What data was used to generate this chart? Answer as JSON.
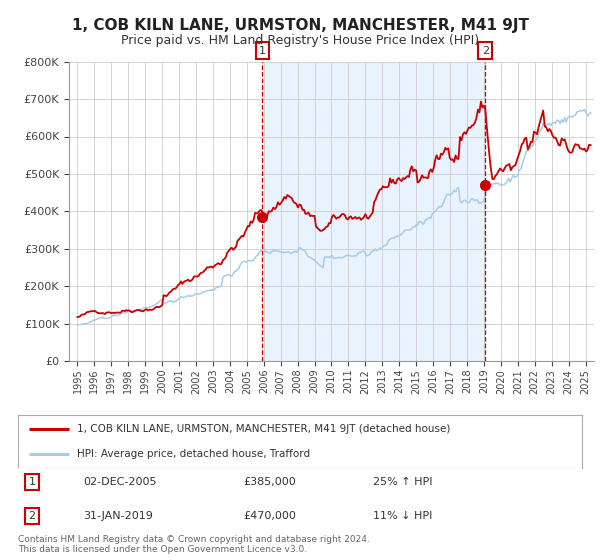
{
  "title": "1, COB KILN LANE, URMSTON, MANCHESTER, M41 9JT",
  "subtitle": "Price paid vs. HM Land Registry's House Price Index (HPI)",
  "line1_label": "1, COB KILN LANE, URMSTON, MANCHESTER, M41 9JT (detached house)",
  "line2_label": "HPI: Average price, detached house, Trafford",
  "line1_color": "#cc0000",
  "line2_color": "#a8cce8",
  "point1_date": 2005.92,
  "point1_value": 385000,
  "point2_date": 2019.08,
  "point2_value": 470000,
  "point1_text": "02-DEC-2005",
  "point1_price": "£385,000",
  "point1_hpi": "25% ↑ HPI",
  "point2_text": "31-JAN-2019",
  "point2_price": "£470,000",
  "point2_hpi": "11% ↓ HPI",
  "vline_color": "#cc0000",
  "shade_color": "#ddeeff",
  "ylim": [
    0,
    800000
  ],
  "yticks": [
    0,
    100000,
    200000,
    300000,
    400000,
    500000,
    600000,
    700000,
    800000
  ],
  "ytick_labels": [
    "£0",
    "£100K",
    "£200K",
    "£300K",
    "£400K",
    "£500K",
    "£600K",
    "£700K",
    "£800K"
  ],
  "xlim_start": 1994.5,
  "xlim_end": 2025.5,
  "xticks": [
    1995,
    1996,
    1997,
    1998,
    1999,
    2000,
    2001,
    2002,
    2003,
    2004,
    2005,
    2006,
    2007,
    2008,
    2009,
    2010,
    2011,
    2012,
    2013,
    2014,
    2015,
    2016,
    2017,
    2018,
    2019,
    2020,
    2021,
    2022,
    2023,
    2024,
    2025
  ],
  "background_color": "#ffffff",
  "grid_color": "#cccccc",
  "footer_text": "Contains HM Land Registry data © Crown copyright and database right 2024.\nThis data is licensed under the Open Government Licence v3.0."
}
